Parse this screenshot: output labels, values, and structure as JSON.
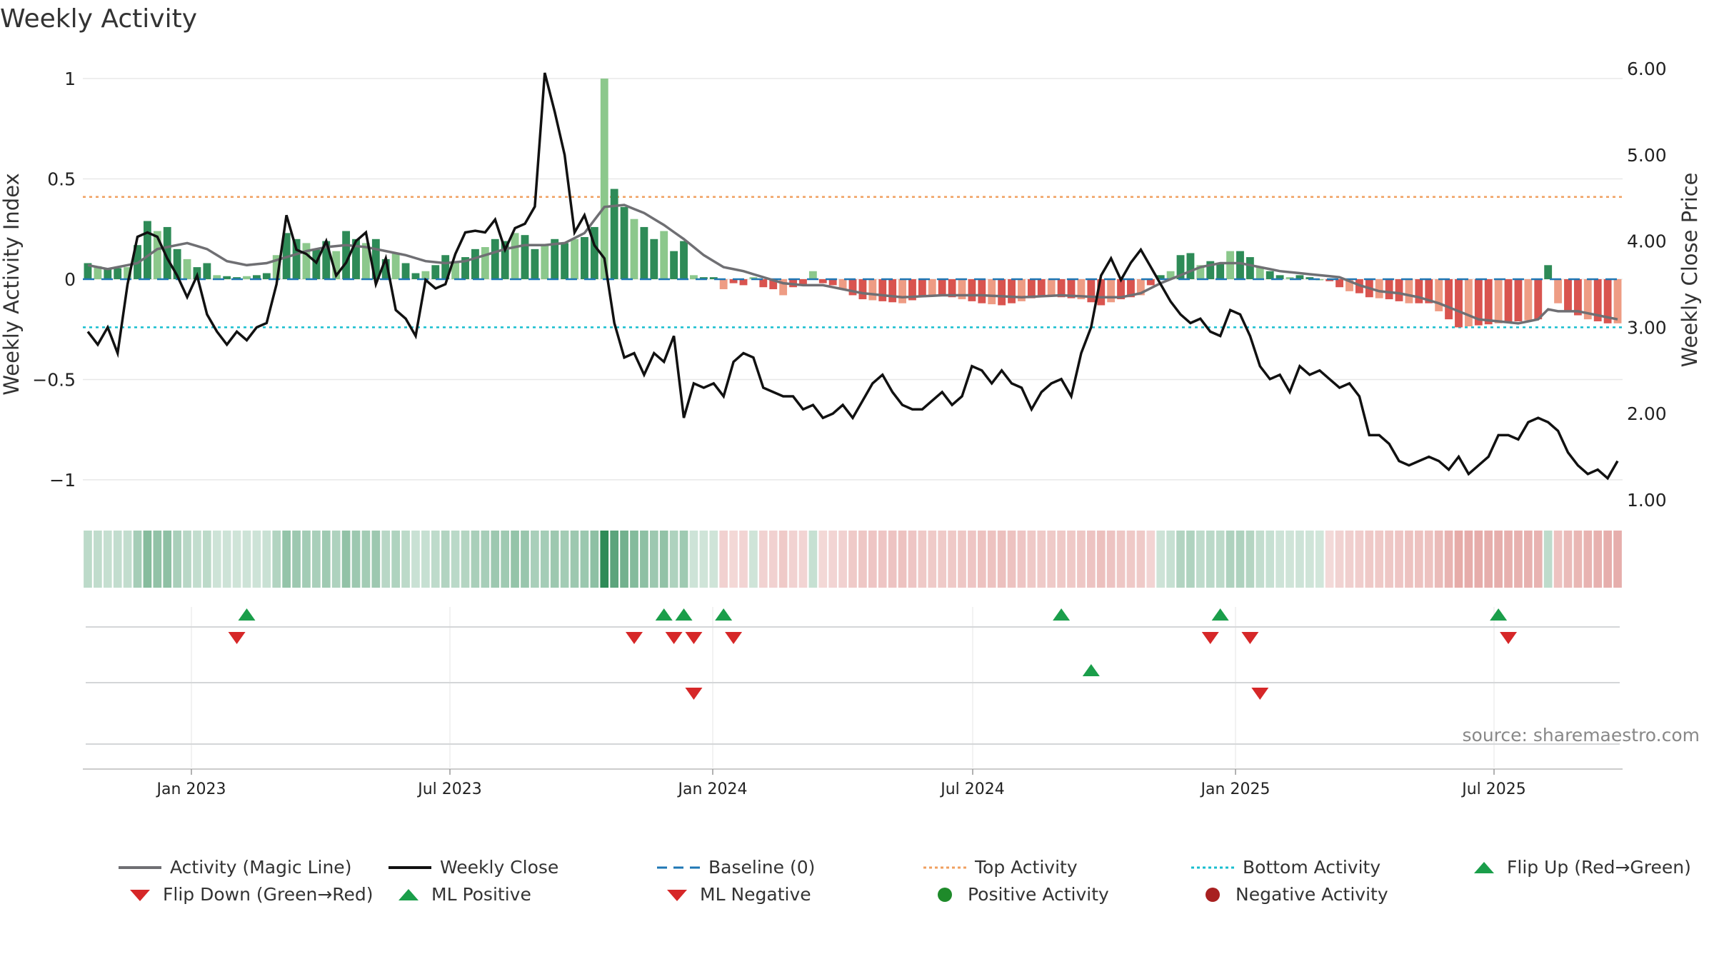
{
  "title": "Weekly Activity",
  "source": "source: sharemaestro.com",
  "colors": {
    "magic_line": "#6f6f73",
    "close_line": "#111111",
    "baseline": "#1f77b4",
    "top_line": "#f0a060",
    "bottom_line": "#17becf",
    "pos_dark": "#2e8b57",
    "pos_light": "#8cc88c",
    "neg_dark": "#d9544f",
    "neg_light": "#ee9c84",
    "flip_up": "#1a9e4a",
    "flip_down": "#d62728",
    "grid": "#e8e8e8"
  },
  "chart_data": {
    "type": "bar+line",
    "title": "Weekly Activity",
    "ylabel_left": "Weekly Activity Index",
    "ylabel_right": "Weekly Close Price",
    "ylim_left": [
      -1.1,
      1.05
    ],
    "ylim_right": [
      1.0,
      6.0
    ],
    "yticks_left": [
      1,
      0.5,
      0,
      -0.5,
      -1
    ],
    "yticks_left_labels": [
      "1",
      "0.5",
      "0",
      "−0.5",
      "−1"
    ],
    "yticks_right": [
      6.0,
      5.0,
      4.0,
      3.0,
      2.0,
      1.0
    ],
    "yticks_right_labels": [
      "6.00",
      "5.00",
      "4.00",
      "3.00",
      "2.00",
      "1.00"
    ],
    "x_start": "2022-10-17",
    "x_end": "2025-09-29",
    "xtick_dates": [
      "2023-01-01",
      "2023-07-01",
      "2024-01-01",
      "2024-07-01",
      "2025-01-01",
      "2025-07-01"
    ],
    "xtick_labels": [
      "Jan 2023",
      "Jul 2023",
      "Jan 2024",
      "Jul 2024",
      "Jan 2025",
      "Jul 2025"
    ],
    "n_weeks": 155,
    "top_activity": 0.41,
    "bottom_activity": -0.24,
    "baseline": 0,
    "activity_keypoints": [
      [
        0,
        0.08
      ],
      [
        2,
        0.05
      ],
      [
        4,
        0.06
      ],
      [
        5,
        0.17
      ],
      [
        6,
        0.29
      ],
      [
        7,
        0.24
      ],
      [
        8,
        0.26
      ],
      [
        9,
        0.15
      ],
      [
        10,
        0.1
      ],
      [
        11,
        0.06
      ],
      [
        12,
        0.08
      ],
      [
        13,
        0.02
      ],
      [
        15,
        0.01
      ],
      [
        17,
        0.02
      ],
      [
        18,
        0.03
      ],
      [
        19,
        0.12
      ],
      [
        20,
        0.23
      ],
      [
        21,
        0.2
      ],
      [
        22,
        0.18
      ],
      [
        23,
        0.15
      ],
      [
        24,
        0.19
      ],
      [
        25,
        0.14
      ],
      [
        26,
        0.24
      ],
      [
        27,
        0.2
      ],
      [
        28,
        0.18
      ],
      [
        29,
        0.2
      ],
      [
        30,
        0.1
      ],
      [
        31,
        0.13
      ],
      [
        32,
        0.08
      ],
      [
        33,
        0.03
      ],
      [
        34,
        0.04
      ],
      [
        35,
        0.07
      ],
      [
        36,
        0.12
      ],
      [
        37,
        0.09
      ],
      [
        38,
        0.11
      ],
      [
        39,
        0.15
      ],
      [
        40,
        0.16
      ],
      [
        41,
        0.2
      ],
      [
        42,
        0.19
      ],
      [
        43,
        0.23
      ],
      [
        44,
        0.22
      ],
      [
        45,
        0.15
      ],
      [
        46,
        0.17
      ],
      [
        47,
        0.2
      ],
      [
        48,
        0.18
      ],
      [
        49,
        0.2
      ],
      [
        50,
        0.21
      ],
      [
        51,
        0.26
      ],
      [
        52,
        1.0
      ],
      [
        53,
        0.45
      ],
      [
        54,
        0.36
      ],
      [
        55,
        0.3
      ],
      [
        56,
        0.26
      ],
      [
        57,
        0.2
      ],
      [
        58,
        0.24
      ],
      [
        59,
        0.14
      ],
      [
        60,
        0.19
      ],
      [
        61,
        0.02
      ],
      [
        62,
        0.01
      ],
      [
        63,
        0.01
      ],
      [
        64,
        -0.05
      ],
      [
        65,
        -0.02
      ],
      [
        66,
        -0.03
      ],
      [
        67,
        0.01
      ],
      [
        68,
        -0.04
      ],
      [
        69,
        -0.05
      ],
      [
        70,
        -0.08
      ],
      [
        71,
        -0.04
      ],
      [
        72,
        -0.03
      ],
      [
        73,
        0.04
      ],
      [
        74,
        -0.02
      ],
      [
        75,
        -0.03
      ],
      [
        76,
        -0.05
      ],
      [
        77,
        -0.08
      ],
      [
        78,
        -0.1
      ],
      [
        80,
        -0.11
      ],
      [
        82,
        -0.12
      ],
      [
        84,
        -0.09
      ],
      [
        86,
        -0.08
      ],
      [
        88,
        -0.1
      ],
      [
        90,
        -0.12
      ],
      [
        92,
        -0.13
      ],
      [
        94,
        -0.11
      ],
      [
        96,
        -0.08
      ],
      [
        98,
        -0.09
      ],
      [
        100,
        -0.1
      ],
      [
        102,
        -0.13
      ],
      [
        104,
        -0.1
      ],
      [
        106,
        -0.08
      ],
      [
        107,
        -0.03
      ],
      [
        108,
        0.02
      ],
      [
        109,
        0.04
      ],
      [
        110,
        0.12
      ],
      [
        111,
        0.13
      ],
      [
        112,
        0.07
      ],
      [
        113,
        0.09
      ],
      [
        114,
        0.08
      ],
      [
        115,
        0.14
      ],
      [
        116,
        0.14
      ],
      [
        117,
        0.11
      ],
      [
        118,
        0.06
      ],
      [
        119,
        0.04
      ],
      [
        120,
        0.02
      ],
      [
        121,
        0.01
      ],
      [
        122,
        0.02
      ],
      [
        123,
        0.01
      ],
      [
        124,
        0.0
      ],
      [
        125,
        -0.01
      ],
      [
        126,
        -0.04
      ],
      [
        127,
        -0.06
      ],
      [
        128,
        -0.07
      ],
      [
        129,
        -0.09
      ],
      [
        131,
        -0.1
      ],
      [
        133,
        -0.12
      ],
      [
        135,
        -0.12
      ],
      [
        136,
        -0.16
      ],
      [
        137,
        -0.2
      ],
      [
        138,
        -0.24
      ],
      [
        140,
        -0.23
      ],
      [
        142,
        -0.22
      ],
      [
        144,
        -0.21
      ],
      [
        146,
        -0.2
      ],
      [
        147,
        0.07
      ],
      [
        148,
        -0.12
      ],
      [
        149,
        -0.16
      ],
      [
        150,
        -0.18
      ],
      [
        151,
        -0.2
      ],
      [
        152,
        -0.21
      ],
      [
        153,
        -0.22
      ],
      [
        154,
        -0.22
      ]
    ],
    "magic_keypoints": [
      [
        0,
        0.07
      ],
      [
        2,
        0.05
      ],
      [
        5,
        0.08
      ],
      [
        7,
        0.15
      ],
      [
        10,
        0.18
      ],
      [
        12,
        0.15
      ],
      [
        14,
        0.09
      ],
      [
        16,
        0.07
      ],
      [
        18,
        0.08
      ],
      [
        20,
        0.11
      ],
      [
        22,
        0.14
      ],
      [
        24,
        0.16
      ],
      [
        26,
        0.17
      ],
      [
        28,
        0.16
      ],
      [
        30,
        0.14
      ],
      [
        32,
        0.12
      ],
      [
        34,
        0.09
      ],
      [
        36,
        0.08
      ],
      [
        38,
        0.09
      ],
      [
        40,
        0.12
      ],
      [
        42,
        0.15
      ],
      [
        44,
        0.17
      ],
      [
        46,
        0.17
      ],
      [
        48,
        0.18
      ],
      [
        50,
        0.23
      ],
      [
        52,
        0.36
      ],
      [
        54,
        0.37
      ],
      [
        56,
        0.33
      ],
      [
        58,
        0.27
      ],
      [
        60,
        0.2
      ],
      [
        62,
        0.12
      ],
      [
        64,
        0.06
      ],
      [
        66,
        0.04
      ],
      [
        68,
        0.01
      ],
      [
        70,
        -0.02
      ],
      [
        72,
        -0.03
      ],
      [
        74,
        -0.03
      ],
      [
        76,
        -0.05
      ],
      [
        78,
        -0.07
      ],
      [
        82,
        -0.09
      ],
      [
        86,
        -0.08
      ],
      [
        90,
        -0.08
      ],
      [
        94,
        -0.09
      ],
      [
        98,
        -0.08
      ],
      [
        102,
        -0.09
      ],
      [
        104,
        -0.09
      ],
      [
        106,
        -0.07
      ],
      [
        108,
        -0.02
      ],
      [
        110,
        0.02
      ],
      [
        112,
        0.06
      ],
      [
        114,
        0.08
      ],
      [
        116,
        0.08
      ],
      [
        118,
        0.06
      ],
      [
        120,
        0.04
      ],
      [
        122,
        0.03
      ],
      [
        124,
        0.02
      ],
      [
        126,
        0.01
      ],
      [
        128,
        -0.03
      ],
      [
        130,
        -0.06
      ],
      [
        132,
        -0.07
      ],
      [
        134,
        -0.09
      ],
      [
        136,
        -0.12
      ],
      [
        138,
        -0.16
      ],
      [
        140,
        -0.2
      ],
      [
        142,
        -0.21
      ],
      [
        144,
        -0.22
      ],
      [
        146,
        -0.2
      ],
      [
        147,
        -0.15
      ],
      [
        148,
        -0.16
      ],
      [
        150,
        -0.16
      ],
      [
        152,
        -0.18
      ],
      [
        154,
        -0.2
      ]
    ],
    "close_keypoints": [
      [
        0,
        2.95
      ],
      [
        1,
        2.8
      ],
      [
        2,
        3.0
      ],
      [
        3,
        2.7
      ],
      [
        4,
        3.5
      ],
      [
        5,
        4.05
      ],
      [
        6,
        4.1
      ],
      [
        7,
        4.05
      ],
      [
        8,
        3.8
      ],
      [
        9,
        3.6
      ],
      [
        10,
        3.35
      ],
      [
        11,
        3.6
      ],
      [
        12,
        3.15
      ],
      [
        13,
        2.95
      ],
      [
        14,
        2.8
      ],
      [
        15,
        2.95
      ],
      [
        16,
        2.85
      ],
      [
        17,
        3.0
      ],
      [
        18,
        3.05
      ],
      [
        19,
        3.5
      ],
      [
        20,
        4.3
      ],
      [
        21,
        3.9
      ],
      [
        22,
        3.85
      ],
      [
        23,
        3.75
      ],
      [
        24,
        4.0
      ],
      [
        25,
        3.6
      ],
      [
        26,
        3.75
      ],
      [
        27,
        4.0
      ],
      [
        28,
        4.1
      ],
      [
        29,
        3.5
      ],
      [
        30,
        3.8
      ],
      [
        31,
        3.2
      ],
      [
        32,
        3.1
      ],
      [
        33,
        2.9
      ],
      [
        34,
        3.55
      ],
      [
        35,
        3.45
      ],
      [
        36,
        3.5
      ],
      [
        37,
        3.85
      ],
      [
        38,
        4.1
      ],
      [
        39,
        4.12
      ],
      [
        40,
        4.1
      ],
      [
        41,
        4.25
      ],
      [
        42,
        3.9
      ],
      [
        43,
        4.15
      ],
      [
        44,
        4.2
      ],
      [
        45,
        4.4
      ],
      [
        46,
        5.95
      ],
      [
        47,
        5.5
      ],
      [
        48,
        5.0
      ],
      [
        49,
        4.1
      ],
      [
        50,
        4.3
      ],
      [
        51,
        3.95
      ],
      [
        52,
        3.8
      ],
      [
        53,
        3.05
      ],
      [
        54,
        2.65
      ],
      [
        55,
        2.7
      ],
      [
        56,
        2.45
      ],
      [
        57,
        2.7
      ],
      [
        58,
        2.6
      ],
      [
        59,
        2.9
      ],
      [
        60,
        1.95
      ],
      [
        61,
        2.35
      ],
      [
        62,
        2.3
      ],
      [
        63,
        2.35
      ],
      [
        64,
        2.2
      ],
      [
        65,
        2.6
      ],
      [
        66,
        2.7
      ],
      [
        67,
        2.65
      ],
      [
        68,
        2.3
      ],
      [
        69,
        2.25
      ],
      [
        70,
        2.2
      ],
      [
        71,
        2.2
      ],
      [
        72,
        2.05
      ],
      [
        73,
        2.1
      ],
      [
        74,
        1.95
      ],
      [
        75,
        2.0
      ],
      [
        76,
        2.1
      ],
      [
        77,
        1.95
      ],
      [
        78,
        2.15
      ],
      [
        79,
        2.35
      ],
      [
        80,
        2.45
      ],
      [
        81,
        2.25
      ],
      [
        82,
        2.1
      ],
      [
        83,
        2.05
      ],
      [
        84,
        2.05
      ],
      [
        85,
        2.15
      ],
      [
        86,
        2.25
      ],
      [
        87,
        2.1
      ],
      [
        88,
        2.2
      ],
      [
        89,
        2.55
      ],
      [
        90,
        2.5
      ],
      [
        91,
        2.35
      ],
      [
        92,
        2.5
      ],
      [
        93,
        2.35
      ],
      [
        94,
        2.3
      ],
      [
        95,
        2.05
      ],
      [
        96,
        2.25
      ],
      [
        97,
        2.35
      ],
      [
        98,
        2.4
      ],
      [
        99,
        2.2
      ],
      [
        100,
        2.7
      ],
      [
        101,
        3.0
      ],
      [
        102,
        3.6
      ],
      [
        103,
        3.8
      ],
      [
        104,
        3.55
      ],
      [
        105,
        3.75
      ],
      [
        106,
        3.9
      ],
      [
        107,
        3.7
      ],
      [
        108,
        3.5
      ],
      [
        109,
        3.3
      ],
      [
        110,
        3.15
      ],
      [
        111,
        3.05
      ],
      [
        112,
        3.1
      ],
      [
        113,
        2.95
      ],
      [
        114,
        2.9
      ],
      [
        115,
        3.2
      ],
      [
        116,
        3.15
      ],
      [
        117,
        2.9
      ],
      [
        118,
        2.55
      ],
      [
        119,
        2.4
      ],
      [
        120,
        2.45
      ],
      [
        121,
        2.25
      ],
      [
        122,
        2.55
      ],
      [
        123,
        2.45
      ],
      [
        124,
        2.5
      ],
      [
        125,
        2.4
      ],
      [
        126,
        2.3
      ],
      [
        127,
        2.35
      ],
      [
        128,
        2.2
      ],
      [
        129,
        1.75
      ],
      [
        130,
        1.75
      ],
      [
        131,
        1.65
      ],
      [
        132,
        1.45
      ],
      [
        133,
        1.4
      ],
      [
        134,
        1.45
      ],
      [
        135,
        1.5
      ],
      [
        136,
        1.45
      ],
      [
        137,
        1.35
      ],
      [
        138,
        1.5
      ],
      [
        139,
        1.3
      ],
      [
        140,
        1.4
      ],
      [
        141,
        1.5
      ],
      [
        142,
        1.75
      ],
      [
        143,
        1.75
      ],
      [
        144,
        1.7
      ],
      [
        145,
        1.9
      ],
      [
        146,
        1.95
      ],
      [
        147,
        1.9
      ],
      [
        148,
        1.8
      ],
      [
        149,
        1.55
      ],
      [
        150,
        1.4
      ],
      [
        151,
        1.3
      ],
      [
        152,
        1.35
      ],
      [
        153,
        1.25
      ],
      [
        154,
        1.45
      ]
    ],
    "flip_up_weeks": [
      16,
      58,
      60,
      64,
      98,
      114,
      142
    ],
    "flip_down_weeks": [
      15,
      55,
      59,
      61,
      65,
      113,
      117,
      143
    ],
    "ml_positive_weeks": [
      101
    ],
    "ml_negative_weeks": [
      61,
      118
    ]
  },
  "legend": [
    {
      "key": "magic",
      "label": "Activity (Magic Line)"
    },
    {
      "key": "close",
      "label": "Weekly Close"
    },
    {
      "key": "baseline",
      "label": "Baseline (0)"
    },
    {
      "key": "top",
      "label": "Top Activity"
    },
    {
      "key": "bottom",
      "label": "Bottom Activity"
    },
    {
      "key": "flipup",
      "label": "Flip Up (Red→Green)"
    },
    {
      "key": "flipdown",
      "label": "Flip Down (Green→Red)"
    },
    {
      "key": "mlpos",
      "label": "ML Positive"
    },
    {
      "key": "mlneg",
      "label": "ML Negative"
    },
    {
      "key": "posact",
      "label": "Positive Activity"
    },
    {
      "key": "negact",
      "label": "Negative Activity"
    }
  ]
}
